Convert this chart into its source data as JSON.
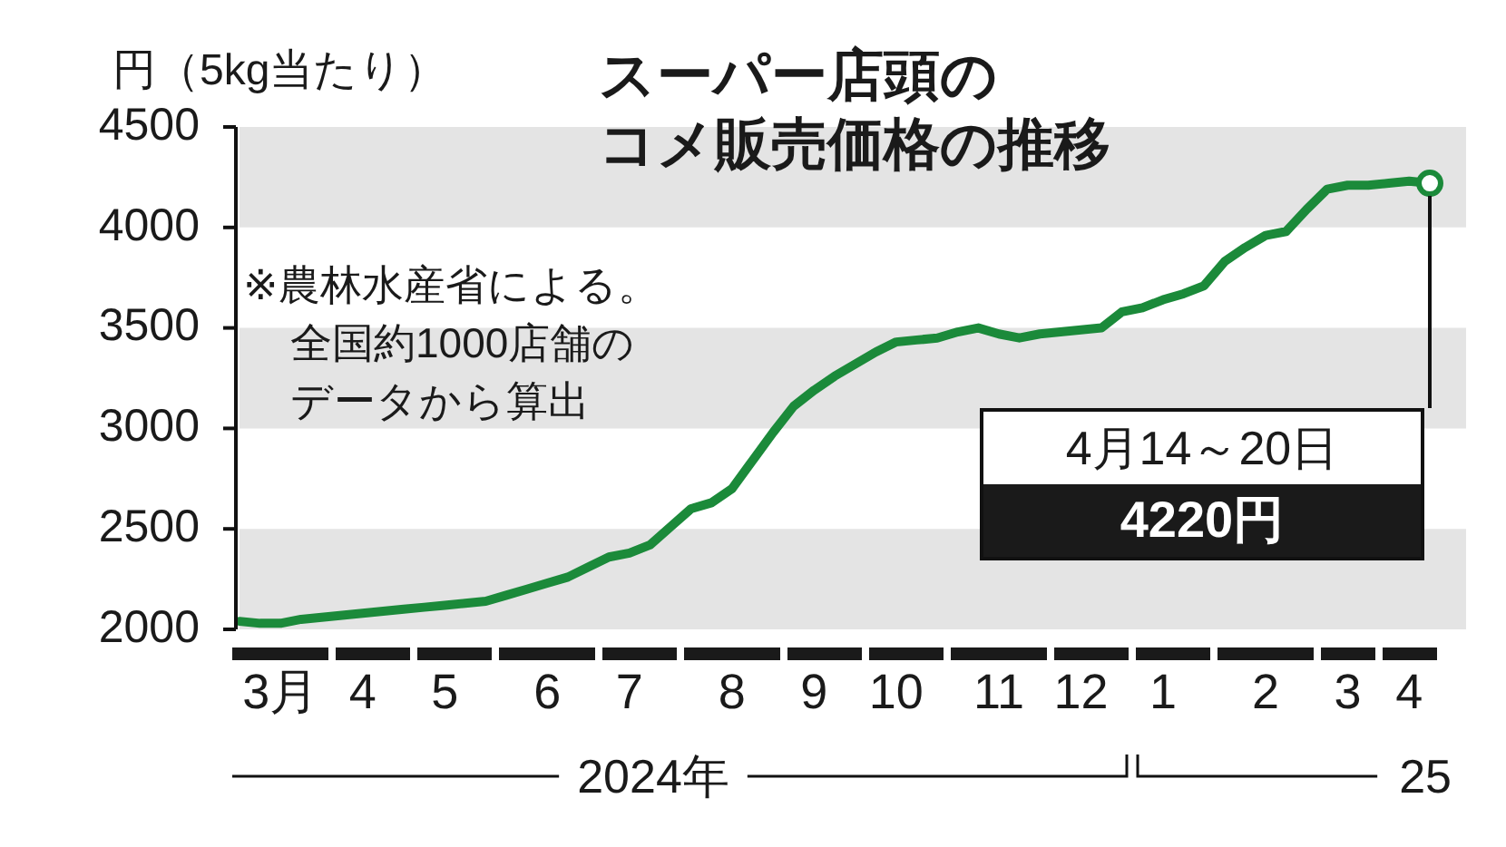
{
  "chart_data": {
    "type": "line",
    "title": "スーパー店頭のコメ販売価格の推移",
    "ylabel": "円（5kg当たり）",
    "categories": [
      null,
      null,
      "3月",
      null,
      null,
      null,
      "4",
      null,
      null,
      null,
      "5",
      null,
      null,
      null,
      null,
      "6",
      null,
      null,
      null,
      "7",
      null,
      null,
      null,
      null,
      "8",
      null,
      null,
      null,
      "9",
      null,
      null,
      null,
      "10",
      null,
      null,
      null,
      null,
      "11",
      null,
      null,
      null,
      "12",
      null,
      null,
      null,
      "1",
      null,
      null,
      null,
      null,
      "2",
      null,
      null,
      null,
      "3",
      null,
      null,
      "4",
      null
    ],
    "series": [
      {
        "color": "#1b8a3a",
        "values": [
          2040,
          2030,
          2030,
          2050,
          2060,
          2070,
          2080,
          2090,
          2100,
          2110,
          2120,
          2130,
          2140,
          2170,
          2200,
          2230,
          2260,
          2310,
          2360,
          2380,
          2420,
          2510,
          2600,
          2630,
          2700,
          2840,
          2980,
          3110,
          3190,
          3260,
          3320,
          3380,
          3430,
          3440,
          3450,
          3480,
          3500,
          3470,
          3450,
          3470,
          3480,
          3490,
          3500,
          3580,
          3600,
          3640,
          3670,
          3710,
          3830,
          3900,
          3960,
          3980,
          4090,
          4190,
          4210,
          4210,
          4220,
          4230,
          4220
        ]
      }
    ],
    "ylim": [
      2000,
      4500
    ],
    "yticks": [
      2000,
      2500,
      3000,
      3500,
      4000,
      4500
    ],
    "legend": false,
    "marker": "none",
    "line_style": "solid",
    "bands": [
      {
        "axis": "y",
        "from": 2000,
        "to": 2500,
        "color": "#e4e4e4"
      },
      {
        "axis": "y",
        "from": 3000,
        "to": 3500,
        "color": "#e4e4e4"
      },
      {
        "axis": "y",
        "from": 4000,
        "to": 4500,
        "color": "#e4e4e4"
      }
    ],
    "annotations": [
      "※農林水産省による。全国約1000店舗のデータから算出",
      "2024年",
      "25",
      "4月14～20日",
      "4220円"
    ]
  }
}
